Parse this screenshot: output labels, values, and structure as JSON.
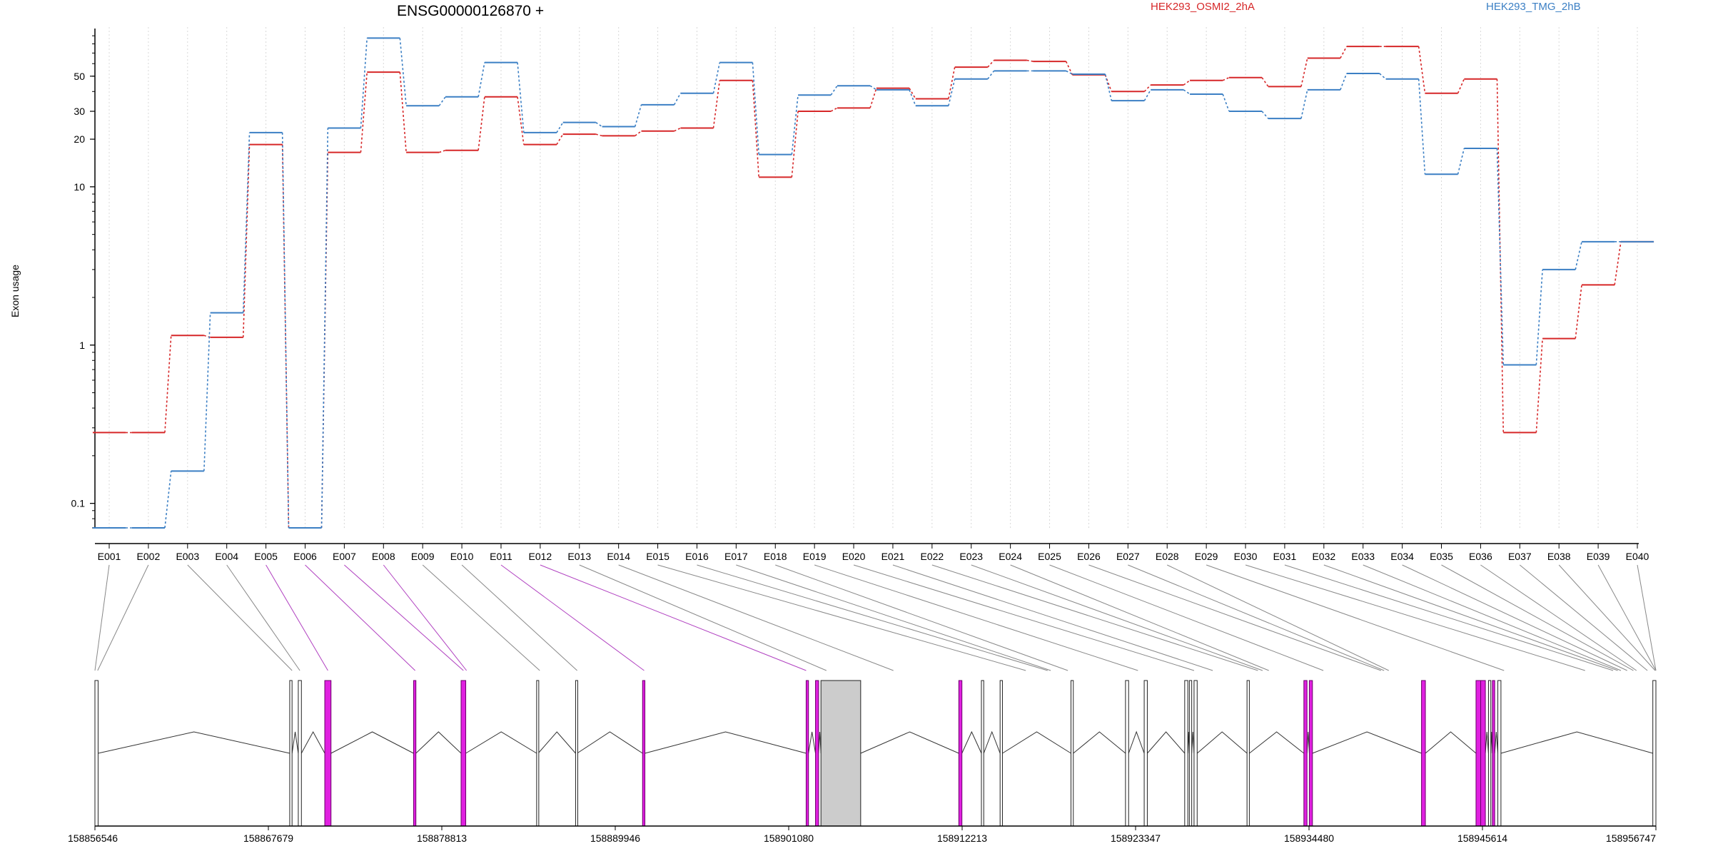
{
  "chart_data": {
    "type": "line",
    "title": "ENSG00000126870 +",
    "ylabel": "Exon usage",
    "xlabel": "",
    "yscale": "log",
    "ylim": [
      0.07,
      100
    ],
    "grid": "vertical-dotted",
    "legend_placement": "top",
    "categories": [
      "E001",
      "E002",
      "E003",
      "E004",
      "E005",
      "E006",
      "E007",
      "E008",
      "E009",
      "E010",
      "E011",
      "E012",
      "E013",
      "E014",
      "E015",
      "E016",
      "E017",
      "E018",
      "E019",
      "E020",
      "E021",
      "E022",
      "E023",
      "E024",
      "E025",
      "E026",
      "E027",
      "E028",
      "E029",
      "E030",
      "E031",
      "E032",
      "E033",
      "E034",
      "E035",
      "E036",
      "E037",
      "E038",
      "E039",
      "E040"
    ],
    "yticks": [
      {
        "value": 0.1,
        "label": "0.1"
      },
      {
        "value": 1,
        "label": "1"
      },
      {
        "value": 10,
        "label": "10"
      },
      {
        "value": 20,
        "label": "20"
      },
      {
        "value": 30,
        "label": "30"
      },
      {
        "value": 50,
        "label": "50"
      }
    ],
    "series": [
      {
        "name": "HEK293_OSMI2_2hA",
        "color": "#d62728",
        "values": [
          0.28,
          0.28,
          1.15,
          1.12,
          18.5,
          0.07,
          16.5,
          53,
          16.5,
          17,
          37,
          18.5,
          21.5,
          21,
          22.5,
          23.5,
          47,
          11.5,
          30,
          31.5,
          42,
          36,
          57,
          63,
          62,
          51,
          40,
          44,
          47,
          49,
          43,
          65,
          77,
          77,
          39,
          48,
          0.28,
          1.1,
          2.4,
          4.5
        ]
      },
      {
        "name": "HEK293_TMG_2hB",
        "color": "#3b7fc4",
        "values": [
          0.07,
          0.07,
          0.16,
          1.6,
          22,
          0.07,
          23.5,
          87,
          32.5,
          37,
          61,
          22,
          25.5,
          24,
          33,
          39,
          61,
          16,
          38,
          43.5,
          41,
          32.5,
          48,
          54,
          54,
          51.5,
          35,
          41,
          38.5,
          30,
          27,
          41,
          52,
          48,
          12,
          17.5,
          0.75,
          3,
          4.5,
          4.5
        ]
      }
    ],
    "gene_model": {
      "coordinates": [
        "158856546",
        "158867679",
        "158878813",
        "158889946",
        "158901080",
        "158912213",
        "158923347",
        "158934480",
        "158945614",
        "158956747"
      ],
      "start": 158856546,
      "end": 158956747,
      "exon_positions": [
        158856546,
        158856720,
        158869200,
        158869700,
        158871500,
        158877100,
        158880200,
        158880400,
        158885100,
        158887500,
        158891800,
        158902200,
        158903500,
        158907800,
        158916300,
        158917700,
        158917900,
        158919000,
        158923500,
        158927100,
        158928300,
        158931200,
        158931500,
        158931900,
        158935400,
        158939100,
        158939300,
        158939600,
        158947000,
        158952200,
        158954000,
        158954300,
        158954500,
        158954900,
        158955300,
        158955500,
        158956200,
        158956700,
        158956747,
        158956747
      ],
      "exons": [
        {
          "start": 158856546,
          "end": 158856750,
          "fill": "#ffffff",
          "highlight": false
        },
        {
          "start": 158869050,
          "end": 158869200,
          "fill": "#ffffff",
          "highlight": false
        },
        {
          "start": 158869600,
          "end": 158869800,
          "fill": "#ffffff",
          "highlight": false
        },
        {
          "start": 158871300,
          "end": 158871700,
          "fill": "#e020e0",
          "highlight": true
        },
        {
          "start": 158877000,
          "end": 158877150,
          "fill": "#e020e0",
          "highlight": true
        },
        {
          "start": 158880050,
          "end": 158880350,
          "fill": "#e020e0",
          "highlight": true
        },
        {
          "start": 158884900,
          "end": 158885000,
          "fill": "#ffffff",
          "highlight": false
        },
        {
          "start": 158887400,
          "end": 158887500,
          "fill": "#ffffff",
          "highlight": false
        },
        {
          "start": 158891700,
          "end": 158891850,
          "fill": "#e020e0",
          "highlight": true
        },
        {
          "start": 158902200,
          "end": 158902350,
          "fill": "#e020e0",
          "highlight": true
        },
        {
          "start": 158902800,
          "end": 158903000,
          "fill": "#e020e0",
          "highlight": true
        },
        {
          "start": 158903150,
          "end": 158905700,
          "fill": "#cccccc",
          "highlight": false
        },
        {
          "start": 158912000,
          "end": 158912200,
          "fill": "#e020e0",
          "highlight": true
        },
        {
          "start": 158913450,
          "end": 158913600,
          "fill": "#ffffff",
          "highlight": false
        },
        {
          "start": 158914650,
          "end": 158914800,
          "fill": "#ffffff",
          "highlight": false
        },
        {
          "start": 158919200,
          "end": 158919350,
          "fill": "#ffffff",
          "highlight": false
        },
        {
          "start": 158922700,
          "end": 158922900,
          "fill": "#ffffff",
          "highlight": false
        },
        {
          "start": 158923900,
          "end": 158924100,
          "fill": "#ffffff",
          "highlight": false
        },
        {
          "start": 158926500,
          "end": 158926700,
          "fill": "#ffffff",
          "highlight": false
        },
        {
          "start": 158926800,
          "end": 158926950,
          "fill": "#ffffff",
          "highlight": false
        },
        {
          "start": 158927100,
          "end": 158927300,
          "fill": "#ffffff",
          "highlight": false
        },
        {
          "start": 158930500,
          "end": 158930650,
          "fill": "#ffffff",
          "highlight": false
        },
        {
          "start": 158934150,
          "end": 158934350,
          "fill": "#e020e0",
          "highlight": true
        },
        {
          "start": 158934500,
          "end": 158934700,
          "fill": "#e020e0",
          "highlight": true
        },
        {
          "start": 158941700,
          "end": 158941950,
          "fill": "#e020e0",
          "highlight": true
        },
        {
          "start": 158945200,
          "end": 158945500,
          "fill": "#e020e0",
          "highlight": true
        },
        {
          "start": 158945500,
          "end": 158945800,
          "fill": "#e020e0",
          "highlight": true
        },
        {
          "start": 158946000,
          "end": 158946150,
          "fill": "#ffffff",
          "highlight": false
        },
        {
          "start": 158946250,
          "end": 158946400,
          "fill": "#e020e0",
          "highlight": true
        },
        {
          "start": 158946600,
          "end": 158946800,
          "fill": "#ffffff",
          "highlight": false
        },
        {
          "start": 158956550,
          "end": 158956747,
          "fill": "#ffffff",
          "highlight": false
        }
      ]
    }
  }
}
